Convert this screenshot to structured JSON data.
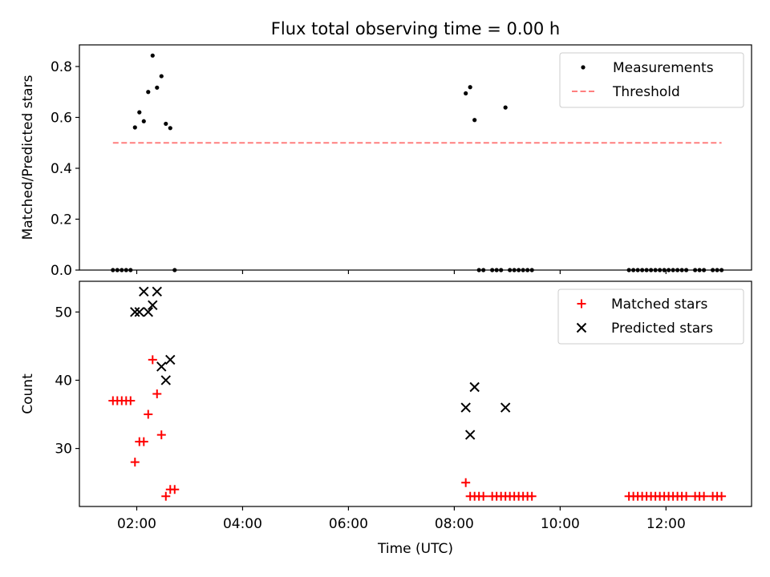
{
  "chart_data": {
    "type": "scatter",
    "title": "Flux total observing time = 0.00 h",
    "xlabel": "Time (UTC)",
    "xticks": [
      "02:00",
      "04:00",
      "06:00",
      "08:00",
      "10:00",
      "12:00"
    ],
    "xlim": [
      "00:55",
      "13:37"
    ],
    "panels": [
      {
        "ylabel": "Matched/Predicted stars",
        "ylim": [
          0,
          0.885
        ],
        "yticks": [
          "0.0",
          "0.2",
          "0.4",
          "0.6",
          "0.8"
        ],
        "legend_position": "top-right",
        "series": [
          {
            "name": "Measurements",
            "marker": "dot",
            "color": "#000000",
            "points": [
              [
                "01:33",
                0.0
              ],
              [
                "01:38",
                0.0
              ],
              [
                "01:43",
                0.0
              ],
              [
                "01:48",
                0.0
              ],
              [
                "01:53",
                0.0
              ],
              [
                "01:58",
                0.5606
              ],
              [
                "02:03",
                0.62
              ],
              [
                "02:08",
                0.5849
              ],
              [
                "02:13",
                0.7
              ],
              [
                "02:18",
                0.8431
              ],
              [
                "02:23",
                0.717
              ],
              [
                "02:28",
                0.7619
              ],
              [
                "02:33",
                0.575
              ],
              [
                "02:38",
                0.5581
              ],
              [
                "02:43",
                0.0
              ],
              [
                "08:13",
                0.6944
              ],
              [
                "08:18",
                0.7188
              ],
              [
                "08:23",
                0.5897
              ],
              [
                "08:28",
                0.0
              ],
              [
                "08:33",
                0.0
              ],
              [
                "08:43",
                0.0
              ],
              [
                "08:48",
                0.0
              ],
              [
                "08:53",
                0.0
              ],
              [
                "09:03",
                0.0
              ],
              [
                "09:08",
                0.0
              ],
              [
                "09:13",
                0.0
              ],
              [
                "09:18",
                0.0
              ],
              [
                "09:23",
                0.0
              ],
              [
                "09:28",
                0.0
              ],
              [
                "08:58",
                0.6389
              ],
              [
                "11:18",
                0.0
              ],
              [
                "11:23",
                0.0
              ],
              [
                "11:28",
                0.0
              ],
              [
                "11:33",
                0.0
              ],
              [
                "11:38",
                0.0
              ],
              [
                "11:43",
                0.0
              ],
              [
                "11:48",
                0.0
              ],
              [
                "11:53",
                0.0
              ],
              [
                "11:58",
                0.0
              ],
              [
                "12:03",
                0.0
              ],
              [
                "12:08",
                0.0
              ],
              [
                "12:13",
                0.0
              ],
              [
                "12:18",
                0.0
              ],
              [
                "12:23",
                0.0
              ],
              [
                "12:33",
                0.0
              ],
              [
                "12:38",
                0.0
              ],
              [
                "12:43",
                0.0
              ],
              [
                "12:53",
                0.0
              ],
              [
                "12:58",
                0.0
              ],
              [
                "13:03",
                0.0
              ]
            ]
          },
          {
            "name": "Threshold",
            "marker": "dashed-line",
            "color": "#ff7f7f",
            "points": [
              [
                "01:33",
                0.5
              ],
              [
                "13:03",
                0.5
              ]
            ]
          }
        ]
      },
      {
        "ylabel": "Count",
        "ylim": [
          21.5,
          54.5
        ],
        "yticks": [
          "30",
          "40",
          "50"
        ],
        "legend_position": "top-right",
        "series": [
          {
            "name": "Matched stars",
            "marker": "plus",
            "color": "#ff0000",
            "points": [
              [
                "01:33",
                37
              ],
              [
                "01:38",
                37
              ],
              [
                "01:43",
                37
              ],
              [
                "01:48",
                37
              ],
              [
                "01:53",
                37
              ],
              [
                "01:58",
                28
              ],
              [
                "02:03",
                31
              ],
              [
                "02:08",
                31
              ],
              [
                "02:13",
                35
              ],
              [
                "02:18",
                43
              ],
              [
                "02:23",
                38
              ],
              [
                "02:28",
                32
              ],
              [
                "02:33",
                23
              ],
              [
                "02:38",
                24
              ],
              [
                "02:43",
                24
              ],
              [
                "08:13",
                25
              ],
              [
                "08:18",
                23
              ],
              [
                "08:23",
                23
              ],
              [
                "08:28",
                23
              ],
              [
                "08:33",
                23
              ],
              [
                "08:43",
                23
              ],
              [
                "08:48",
                23
              ],
              [
                "08:53",
                23
              ],
              [
                "08:58",
                23
              ],
              [
                "09:03",
                23
              ],
              [
                "09:08",
                23
              ],
              [
                "09:13",
                23
              ],
              [
                "09:18",
                23
              ],
              [
                "09:23",
                23
              ],
              [
                "09:28",
                23
              ],
              [
                "11:18",
                23
              ],
              [
                "11:23",
                23
              ],
              [
                "11:28",
                23
              ],
              [
                "11:33",
                23
              ],
              [
                "11:38",
                23
              ],
              [
                "11:43",
                23
              ],
              [
                "11:48",
                23
              ],
              [
                "11:53",
                23
              ],
              [
                "11:58",
                23
              ],
              [
                "12:03",
                23
              ],
              [
                "12:08",
                23
              ],
              [
                "12:13",
                23
              ],
              [
                "12:18",
                23
              ],
              [
                "12:23",
                23
              ],
              [
                "12:33",
                23
              ],
              [
                "12:38",
                23
              ],
              [
                "12:43",
                23
              ],
              [
                "12:53",
                23
              ],
              [
                "12:58",
                23
              ],
              [
                "13:03",
                23
              ]
            ]
          },
          {
            "name": "Predicted stars",
            "marker": "x",
            "color": "#000000",
            "points": [
              [
                "01:58",
                50
              ],
              [
                "02:03",
                50
              ],
              [
                "02:08",
                53
              ],
              [
                "02:13",
                50
              ],
              [
                "02:18",
                51
              ],
              [
                "02:23",
                53
              ],
              [
                "02:28",
                42
              ],
              [
                "02:33",
                40
              ],
              [
                "02:38",
                43
              ],
              [
                "08:13",
                36
              ],
              [
                "08:18",
                32
              ],
              [
                "08:23",
                39
              ],
              [
                "08:58",
                36
              ]
            ]
          }
        ]
      }
    ]
  }
}
